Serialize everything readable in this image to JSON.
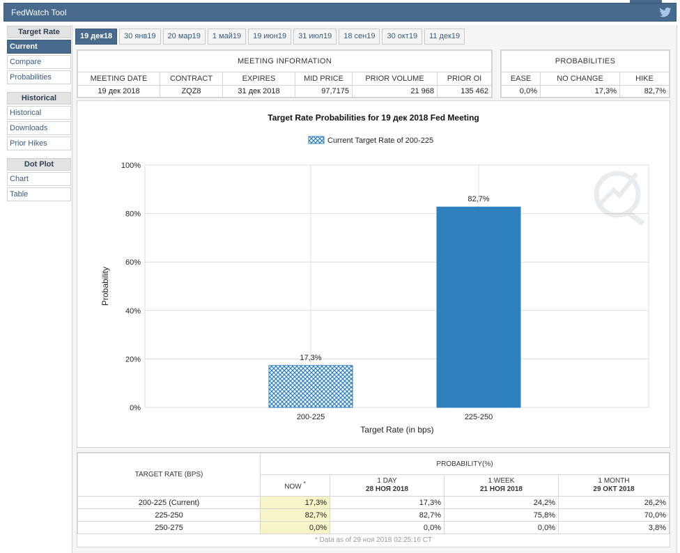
{
  "app": {
    "title": "FedWatch Tool",
    "twitter_icon": "twitter-icon"
  },
  "sidebar": {
    "sections": [
      {
        "header": "Target Rate",
        "items": [
          "Current",
          "Compare",
          "Probabilities"
        ],
        "active": "Current"
      },
      {
        "header": "Historical",
        "items": [
          "Historical",
          "Downloads",
          "Prior Hikes"
        ]
      },
      {
        "header": "Dot Plot",
        "items": [
          "Chart",
          "Table"
        ]
      }
    ]
  },
  "tabs": [
    "19 дек18",
    "30 янв19",
    "20 мар19",
    "1 май19",
    "19 июн19",
    "31 июл19",
    "18 сен19",
    "30 окт19",
    "11 дек19"
  ],
  "active_tab": "19 дек18",
  "meeting_info": {
    "header": "MEETING INFORMATION",
    "columns": [
      "MEETING DATE",
      "CONTRACT",
      "EXPIRES",
      "MID PRICE",
      "PRIOR VOLUME",
      "PRIOR OI"
    ],
    "row": [
      "19 дек 2018",
      "ZQZ8",
      "31 дек 2018",
      "97,7175",
      "21 968",
      "135 462"
    ]
  },
  "probabilities": {
    "header": "PROBABILITIES",
    "columns": [
      "EASE",
      "NO CHANGE",
      "HIKE"
    ],
    "row": [
      "0,0%",
      "17,3%",
      "82,7%"
    ]
  },
  "chart_data": {
    "type": "bar",
    "title": "Target Rate Probabilities for 19 дек 2018 Fed Meeting",
    "legend": "Current Target Rate of 200-225",
    "categories": [
      "200-225",
      "225-250"
    ],
    "values": [
      17.3,
      82.7
    ],
    "value_labels": [
      "17,3%",
      "82,7%"
    ],
    "highlighted_category": "200-225",
    "colors": {
      "bar": "#2e7fbd",
      "hatch": "#2e7fbd"
    },
    "xlabel": "Target Rate (in bps)",
    "ylabel": "Probability",
    "yticks": [
      "0%",
      "20%",
      "40%",
      "60%",
      "80%",
      "100%"
    ],
    "ylim": [
      0,
      100
    ],
    "grid": true,
    "legend_position": "top-center"
  },
  "bottom_table": {
    "header_rate": "TARGET RATE (BPS)",
    "header_prob": "PROBABILITY(%)",
    "columns": [
      {
        "label": "NOW",
        "sub": ""
      },
      {
        "label": "1 DAY",
        "sub": "28 НОЯ 2018"
      },
      {
        "label": "1 WEEK",
        "sub": "21 НОЯ 2018"
      },
      {
        "label": "1 MONTH",
        "sub": "29 ОКТ 2018"
      }
    ],
    "now_mark": "*",
    "rows": [
      {
        "rate": "200-225 (Current)",
        "values": [
          "17,3%",
          "17,3%",
          "24,2%",
          "26,2%"
        ]
      },
      {
        "rate": "225-250",
        "values": [
          "82,7%",
          "82,7%",
          "75,8%",
          "70,0%"
        ]
      },
      {
        "rate": "250-275",
        "values": [
          "0,0%",
          "0,0%",
          "0,0%",
          "3,8%"
        ]
      }
    ],
    "footnote": "* Data as of 29 ноя 2018 02:25:16 CT"
  }
}
